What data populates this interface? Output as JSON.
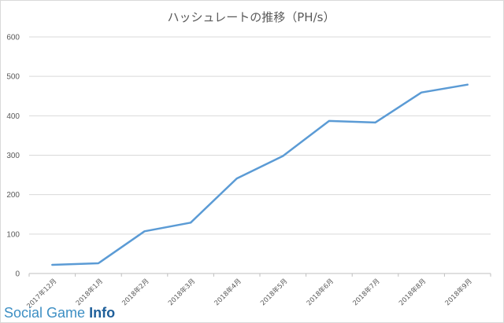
{
  "chart_data": {
    "type": "line",
    "title": "ハッシュレートの推移（PH/s）",
    "categories": [
      "2017年12月",
      "2018年1月",
      "2018年2月",
      "2018年3月",
      "2018年4月",
      "2018年5月",
      "2018年6月",
      "2018年7月",
      "2018年8月",
      "2018年9月"
    ],
    "series": [
      {
        "values": [
          22,
          26,
          107,
          129,
          241,
          298,
          387,
          383,
          459,
          479
        ]
      }
    ],
    "ylim": [
      0,
      600
    ],
    "yticks": [
      0,
      100,
      200,
      300,
      400,
      500,
      600
    ],
    "grid": true,
    "legend": "none",
    "colors": {
      "line": "#5b9bd5"
    }
  },
  "watermark": {
    "social": "Social",
    "game": "Game",
    "info": "Info"
  }
}
